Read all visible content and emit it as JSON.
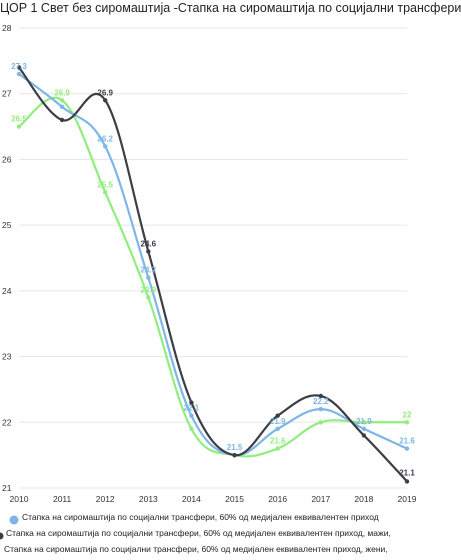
{
  "chart_data": {
    "type": "line",
    "title": "ЦОР 1 Свет без сиромаштија -Стапка на сиромаштија по социјални трансфери",
    "x": [
      "2010",
      "2011",
      "2012",
      "2013",
      "2014",
      "2015",
      "2016",
      "2017",
      "2018",
      "2019"
    ],
    "ylim": [
      21,
      28
    ],
    "yticks": [
      "21",
      "22",
      "23",
      "24",
      "25",
      "26",
      "27",
      "28"
    ],
    "grid": true,
    "legend_position": "bottom",
    "series": [
      {
        "name": "Стапка на сиромаштија по   социјални трансфери, 60%  од медијален   еквивалентен приход",
        "values": [
          27.3,
          26.8,
          26.2,
          24.2,
          22.1,
          21.5,
          21.9,
          22.2,
          21.9,
          21.6
        ],
        "labels": [
          "27.3",
          "",
          "26.2",
          "24.2",
          "22.1",
          "21.5",
          "21.9",
          "22.2",
          "21.9",
          "21.6"
        ],
        "color": "#7eb6e6"
      },
      {
        "name": "Стапка на сиромаштија по   социјални трансфери, 60%  од медијален   еквивалентен приход, мажи,",
        "values": [
          27.4,
          26.6,
          26.9,
          24.6,
          22.3,
          21.5,
          22.1,
          22.4,
          21.8,
          21.1
        ],
        "labels": [
          "",
          "",
          "26.9",
          "24.6",
          "",
          "",
          "",
          "",
          "",
          "21.1"
        ],
        "color": "#3d3e45"
      },
      {
        "name": "Стапка на сиромаштија по   социјални трансфери, 60%  од медијален   еквивалентен приход, жени,",
        "values": [
          26.5,
          26.9,
          25.5,
          23.9,
          21.9,
          21.5,
          21.6,
          22.0,
          22.0,
          22.0
        ],
        "labels": [
          "26.5",
          "26.9",
          "25.5",
          "23.9",
          "",
          "",
          "21.6",
          "",
          "",
          "22"
        ],
        "color": "#90ee7e"
      }
    ]
  }
}
